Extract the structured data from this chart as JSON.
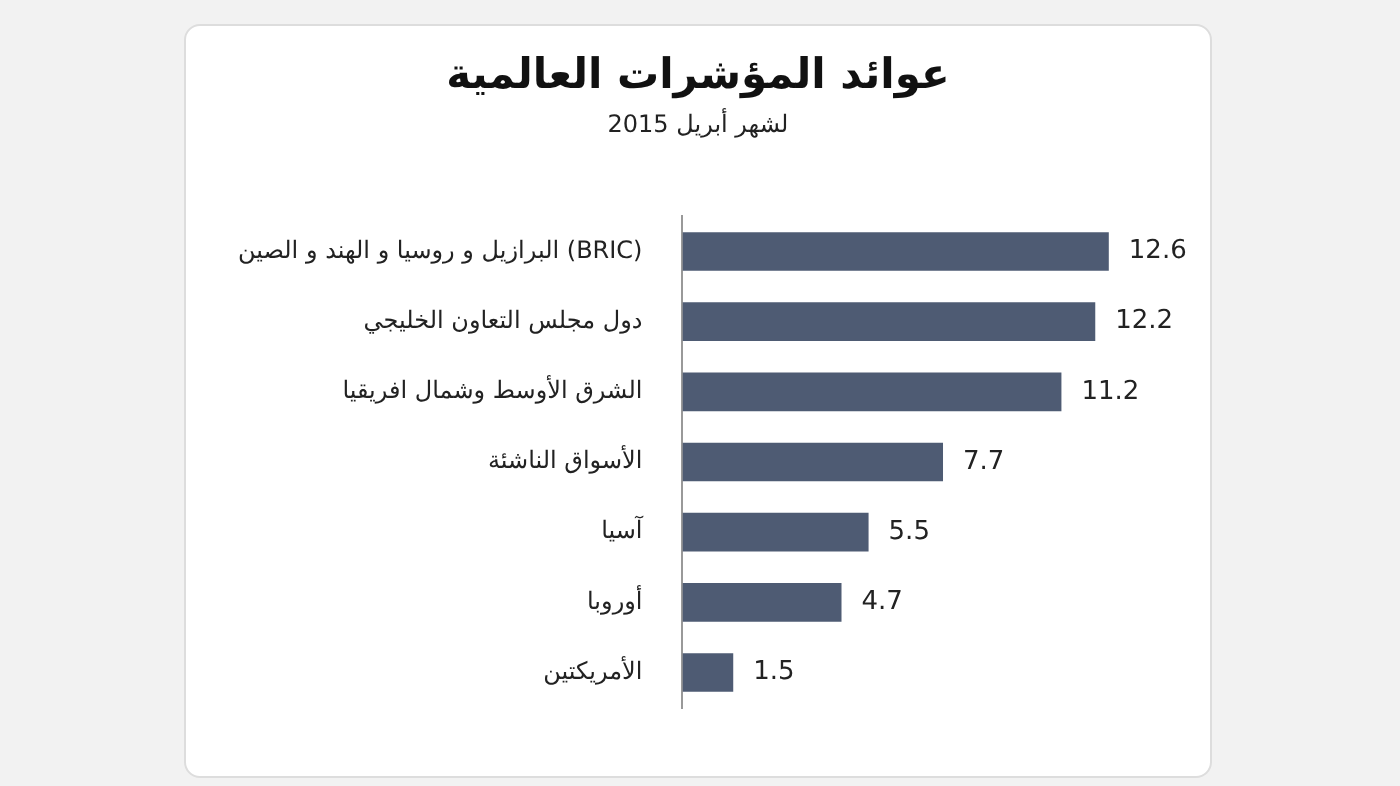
{
  "chart_data": {
    "type": "bar",
    "orientation": "horizontal",
    "title": "عوائد المؤشرات العالمية",
    "subtitle": "لشهر أبريل 2015",
    "categories": [
      "البرازيل و روسيا و الهند و الصين (BRIC)",
      "دول مجلس التعاون الخليجي",
      "الشرق الأوسط وشمال افريقيا",
      "الأسواق الناشئة",
      "آسيا",
      "أوروبا",
      "الأمريكتين"
    ],
    "values": [
      12.6,
      12.2,
      11.2,
      7.7,
      5.5,
      4.7,
      1.5
    ],
    "color": "#4e5b73",
    "data_labels": true,
    "legend": false
  }
}
